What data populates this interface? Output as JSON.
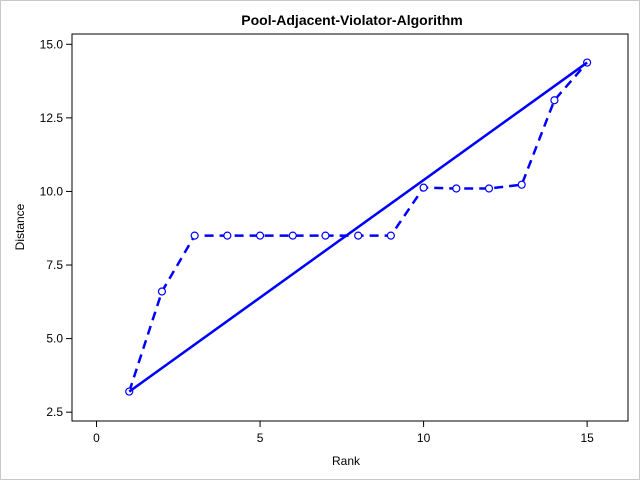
{
  "chart_data": {
    "type": "line",
    "title": "Pool-Adjacent-Violator-Algorithm",
    "xlabel": "Rank",
    "ylabel": "Distance",
    "xlim": [
      -0.75,
      16.25
    ],
    "ylim": [
      2.2,
      15.35
    ],
    "xticks": [
      0,
      5,
      10,
      15
    ],
    "xtick_labels": [
      "0",
      "5",
      "10",
      "15"
    ],
    "yticks": [
      2.5,
      5.0,
      7.5,
      10.0,
      12.5,
      15.0
    ],
    "ytick_labels": [
      "2.5",
      "5.0",
      "7.5",
      "10.0",
      "12.5",
      "15.0"
    ],
    "grid": false,
    "legend": "none",
    "color": "#0000ff",
    "series": [
      {
        "style": "dashed-with-circle-markers",
        "x": [
          1,
          2,
          3,
          4,
          5,
          6,
          7,
          8,
          9,
          10,
          11,
          12,
          13,
          14,
          15
        ],
        "y": [
          3.2,
          6.6,
          8.5,
          8.5,
          8.5,
          8.5,
          8.5,
          8.5,
          8.5,
          10.13,
          10.1,
          10.1,
          10.23,
          13.1,
          14.38
        ]
      },
      {
        "style": "solid",
        "x": [
          1,
          15
        ],
        "y": [
          3.2,
          14.38
        ]
      }
    ]
  }
}
